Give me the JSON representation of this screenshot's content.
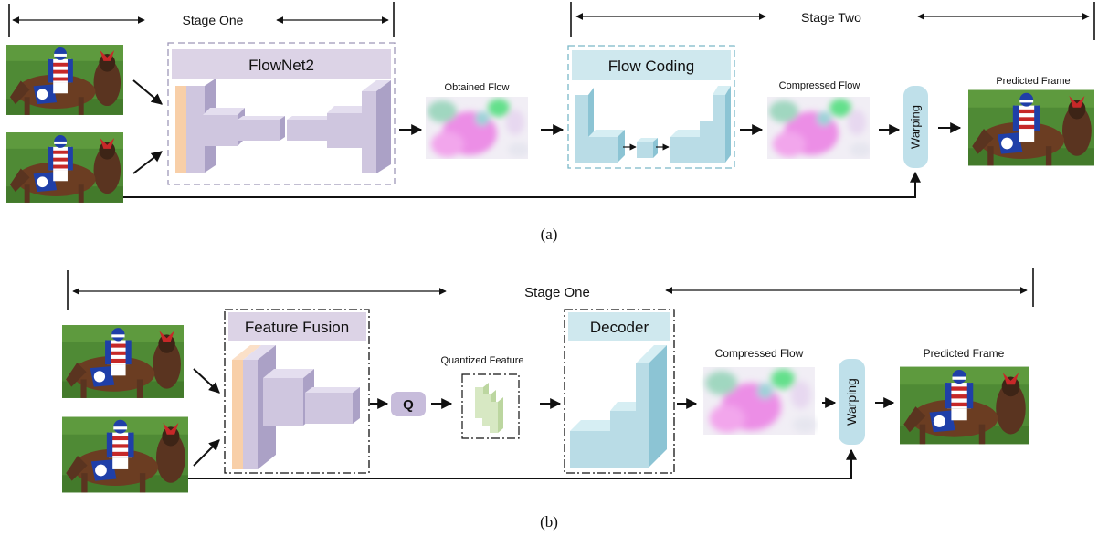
{
  "part_a": {
    "stage_one_label": "Stage One",
    "stage_two_label": "Stage Two",
    "flownet_label": "FlowNet2",
    "obtained_flow_label": "Obtained Flow",
    "flow_coding_label": "Flow Coding",
    "compressed_flow_label": "Compressed Flow",
    "warping_label": "Warping",
    "predicted_frame_label": "Predicted Frame",
    "caption": "(a)"
  },
  "part_b": {
    "stage_one_label": "Stage One",
    "feature_fusion_label": "Feature Fusion",
    "quantizer_label": "Q",
    "quantized_feature_label": "Quantized Feature",
    "decoder_label": "Decoder",
    "compressed_flow_label": "Compressed Flow",
    "warping_label": "Warping",
    "predicted_frame_label": "Predicted Frame",
    "caption": "(b)"
  },
  "colors": {
    "flownet_header": "#dcd3e6",
    "network_block": "#cfc6df",
    "first_layer": "#f8cfa8",
    "coding_header": "#cfe8ee",
    "coding_block": "#b9dce6",
    "warping_box": "#bfe0ea",
    "quantizer_box": "#c7bcdb",
    "quantized_feature": "#d7e8c3",
    "jersey_red": "#c62828",
    "jersey_blue": "#1f3fa8",
    "grass": "#4f8a35",
    "horse": "#6b3d22"
  }
}
